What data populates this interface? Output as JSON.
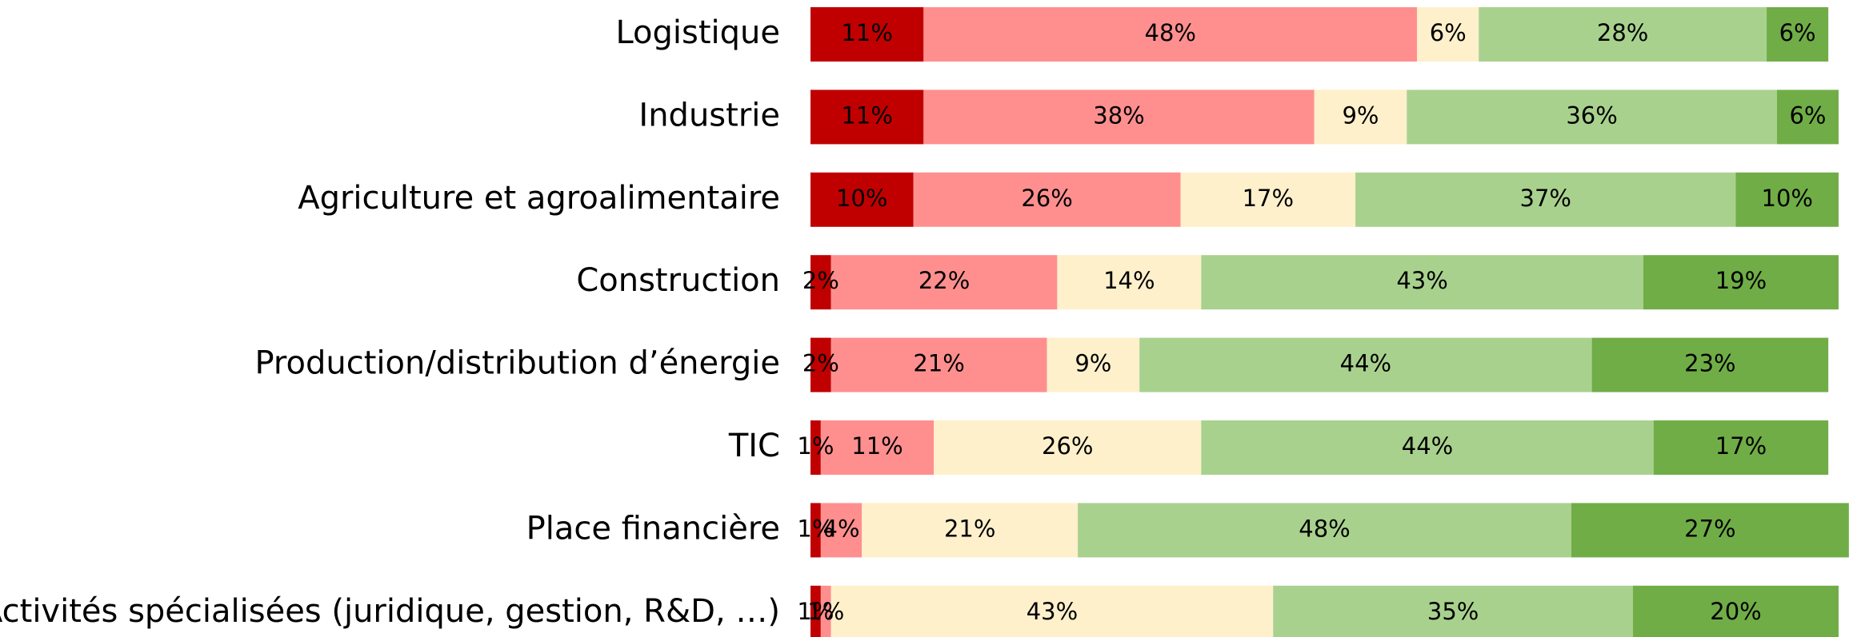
{
  "chart_data": {
    "type": "stacked-barh",
    "categories": [
      "Logistique",
      "Industrie",
      "Agriculture et agroalimentaire",
      "Construction",
      "Production/distribution d’énergie",
      "TIC",
      "Place financière",
      "Activités spécialisées (juridique, gestion, R&D, …)"
    ],
    "xlim": [
      0,
      100
    ],
    "series": [
      {
        "color": "#c00000",
        "values": [
          11,
          11,
          10,
          2,
          2,
          1,
          1,
          1
        ],
        "value_labels": [
          "11%",
          "11%",
          "10%",
          "2%",
          "2%",
          "1%",
          "1%",
          "1%"
        ]
      },
      {
        "color": "#ff8f8f",
        "values": [
          48,
          38,
          26,
          22,
          21,
          11,
          4,
          1
        ],
        "value_labels": [
          "48%",
          "38%",
          "26%",
          "22%",
          "21%",
          "11%",
          "4%",
          "1%"
        ]
      },
      {
        "color": "#fff0cc",
        "values": [
          6,
          9,
          17,
          14,
          9,
          26,
          21,
          43
        ],
        "value_labels": [
          "6%",
          "9%",
          "17%",
          "14%",
          "9%",
          "26%",
          "21%",
          "43%"
        ]
      },
      {
        "color": "#a9d18e",
        "values": [
          28,
          36,
          37,
          43,
          44,
          44,
          48,
          35
        ],
        "value_labels": [
          "28%",
          "36%",
          "37%",
          "43%",
          "44%",
          "44%",
          "48%",
          "35%"
        ]
      },
      {
        "color": "#70ad47",
        "values": [
          6,
          6,
          10,
          19,
          23,
          17,
          27,
          20
        ],
        "value_labels": [
          "6%",
          "6%",
          "10%",
          "19%",
          "23%",
          "17%",
          "27%",
          "20%"
        ]
      }
    ]
  }
}
